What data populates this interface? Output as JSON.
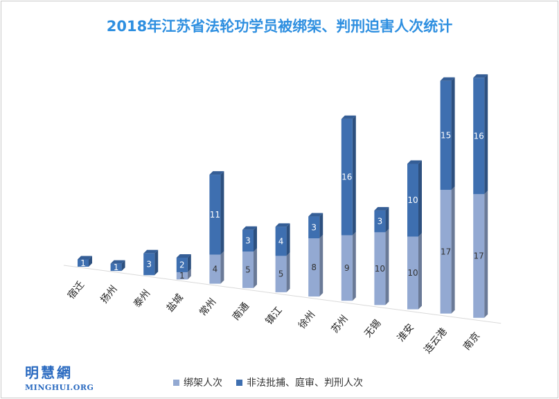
{
  "chart_data": {
    "type": "bar",
    "stacked": true,
    "title": "2018年江苏省法轮功学员被绑架、判刑迫害人次统计",
    "categories": [
      "宿迁",
      "扬州",
      "泰州",
      "盐城",
      "常州",
      "南通",
      "镇江",
      "徐州",
      "苏州",
      "无锡",
      "淮安",
      "连云港",
      "南京"
    ],
    "series": [
      {
        "name": "绑架人次",
        "color": "#93a9d2",
        "values": [
          0,
          0,
          0,
          1,
          4,
          5,
          5,
          8,
          9,
          10,
          10,
          17,
          17
        ]
      },
      {
        "name": "非法批捕、庭审、判刑人次",
        "color": "#3e6fb0",
        "values": [
          1,
          1,
          3,
          2,
          11,
          3,
          4,
          3,
          16,
          3,
          10,
          15,
          16
        ]
      }
    ],
    "legend_position": "bottom",
    "grid": false
  },
  "logo": {
    "cn": "明慧網",
    "en": "MINGHUI.ORG"
  }
}
